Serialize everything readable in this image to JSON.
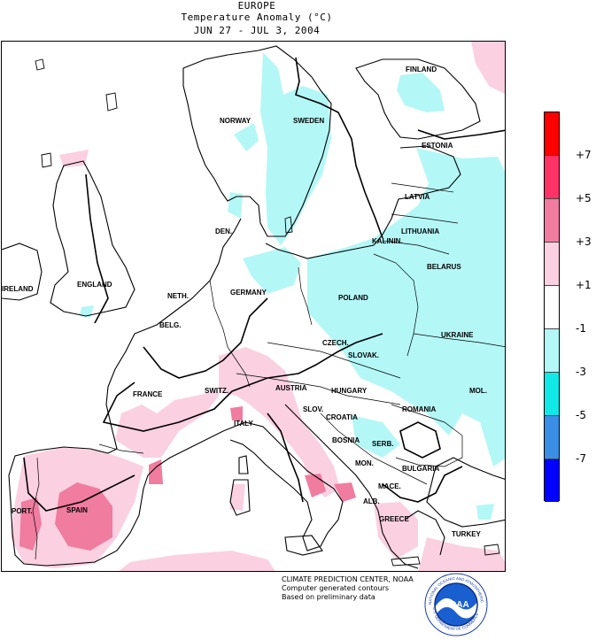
{
  "header": {
    "region": "EUROPE",
    "variable": "Temperature Anomaly (°C)",
    "period": "JUN 27 - JUL  3, 2004"
  },
  "legend": {
    "bins": [
      {
        "color": "#ff0000"
      },
      {
        "color": "#ff3366"
      },
      {
        "color": "#f07ca0"
      },
      {
        "color": "#fbd0e0"
      },
      {
        "color": "#ffffff"
      },
      {
        "color": "#b4f7f7"
      },
      {
        "color": "#11e8e8"
      },
      {
        "color": "#3a8ee6"
      },
      {
        "color": "#0000ff"
      }
    ],
    "labels": [
      "+7",
      "+5",
      "+3",
      "+1",
      "-1",
      "-3",
      "-5",
      "-7"
    ]
  },
  "countries": [
    "FINLAND",
    "NORWAY",
    "SWEDEN",
    "ESTONIA",
    "LATVIA",
    "DEN.",
    "LITHUANIA",
    "KALININ.",
    "BELARUS",
    "IRELAND",
    "ENGLAND",
    "NETH.",
    "GERMANY",
    "POLAND",
    "BELG.",
    "UKRAINE",
    "CZECH.",
    "SLOVAK.",
    "FRANCE",
    "SWITZ.",
    "AUSTRIA",
    "HUNGARY",
    "MOL.",
    "SLOV.",
    "ROMANIA",
    "CROATIA",
    "ITALY",
    "BOSNIA",
    "SERB.",
    "MON.",
    "BULGARIA",
    "MACE.",
    "PORT.",
    "SPAIN",
    "ALB.",
    "GREECE",
    "TURKEY"
  ],
  "credits": {
    "line1": "CLIMATE PREDICTION CENTER, NOAA",
    "line2": "Computer generated contours",
    "line3": "Based on preliminary data"
  },
  "logo": {
    "text": "NOAA",
    "ring_top": "NATIONAL OCEANIC AND ATMOSPHERIC ADMINISTRATION",
    "ring_bottom": "U.S. DEPARTMENT OF COMMERCE"
  }
}
